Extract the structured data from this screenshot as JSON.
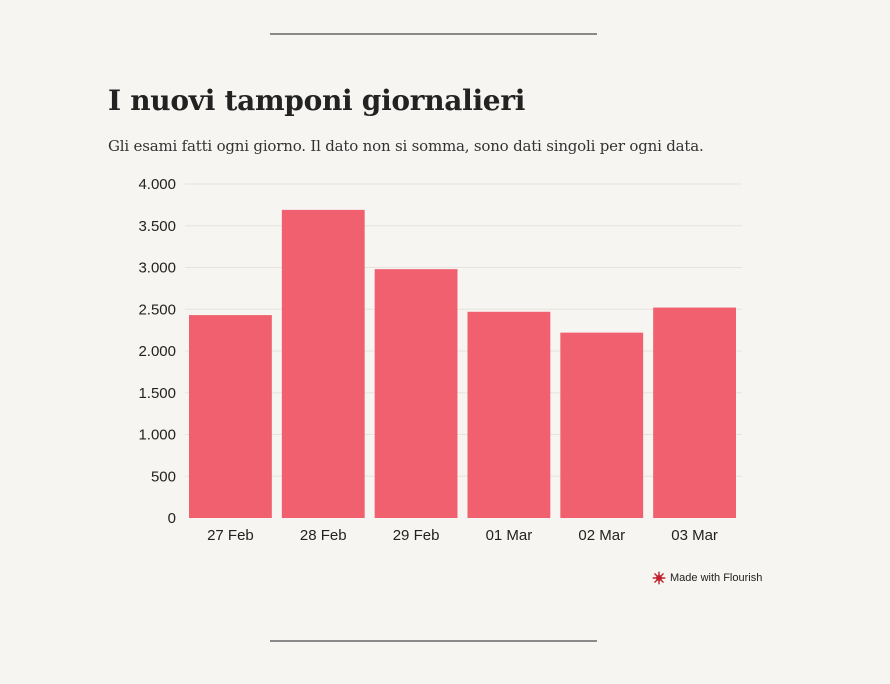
{
  "header": {
    "title": "I nuovi tamponi giornalieri",
    "subtitle": "Gli esami fatti ogni giorno. Il dato non si somma, sono dati singoli per ogni data."
  },
  "footer": {
    "credit": "Made with Flourish",
    "credit_icon": "flourish-logo-icon"
  },
  "colors": {
    "bar": "#f0606f",
    "background": "#f7f5f2",
    "grid": "#e6e3de",
    "text": "#222222"
  },
  "chart_data": {
    "type": "bar",
    "categories": [
      "27 Feb",
      "28 Feb",
      "29 Feb",
      "01 Mar",
      "02 Mar",
      "03 Mar"
    ],
    "values": [
      2430,
      3690,
      2980,
      2470,
      2220,
      2520
    ],
    "ylim": [
      0,
      4000
    ],
    "yticks": [
      0,
      500,
      1000,
      1500,
      2000,
      2500,
      3000,
      3500,
      4000
    ],
    "ytick_labels": [
      "0",
      "500",
      "1.000",
      "1.500",
      "2.000",
      "2.500",
      "3.000",
      "3.500",
      "4.000"
    ],
    "grid": true,
    "legend": "none"
  }
}
